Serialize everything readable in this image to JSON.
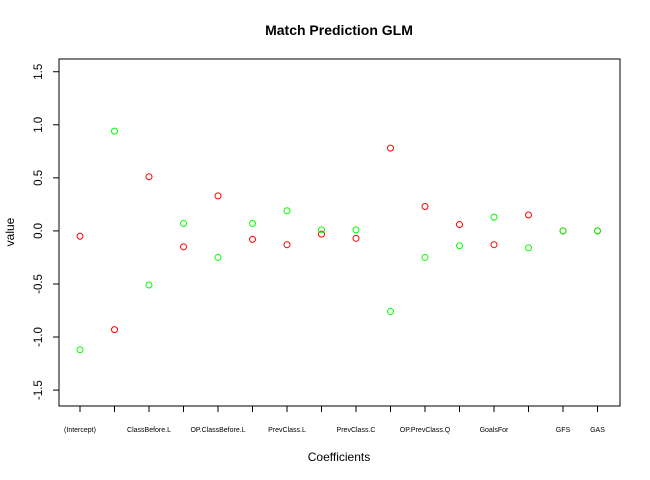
{
  "chart_data": {
    "type": "scatter",
    "title": "Match Prediction GLM",
    "xlabel": "Coefficients",
    "ylabel": "value",
    "ylim": [
      -1.65,
      1.62
    ],
    "yticks": [
      "1.5",
      "1.0",
      "0.5",
      "0.0",
      "-0.5",
      "-1.0",
      "-1.5"
    ],
    "ytick_values": [
      1.5,
      1.0,
      0.5,
      0.0,
      -0.5,
      -1.0,
      -1.5
    ],
    "categories": [
      "(Intercept)",
      "",
      "ClassBefore.L",
      "",
      "OP.ClassBefore.L",
      "",
      "PrevClass.L",
      "",
      "PrevClass.C",
      "",
      "OP.PrevClass.Q",
      "",
      "GoalsFor",
      "",
      "GFS",
      "GAS"
    ],
    "legend": false,
    "grid": false,
    "series": [
      {
        "color": "#ff0000",
        "values": [
          -0.05,
          -0.93,
          0.51,
          -0.15,
          0.33,
          -0.08,
          -0.13,
          -0.03,
          -0.07,
          0.78,
          0.23,
          0.06,
          -0.13,
          0.15,
          0.0,
          0.0
        ]
      },
      {
        "color": "#00ff00",
        "values": [
          -1.12,
          0.94,
          -0.51,
          0.07,
          -0.25,
          0.07,
          0.19,
          0.01,
          0.01,
          -0.76,
          -0.25,
          -0.14,
          0.13,
          -0.16,
          0.0,
          0.0
        ]
      }
    ]
  }
}
